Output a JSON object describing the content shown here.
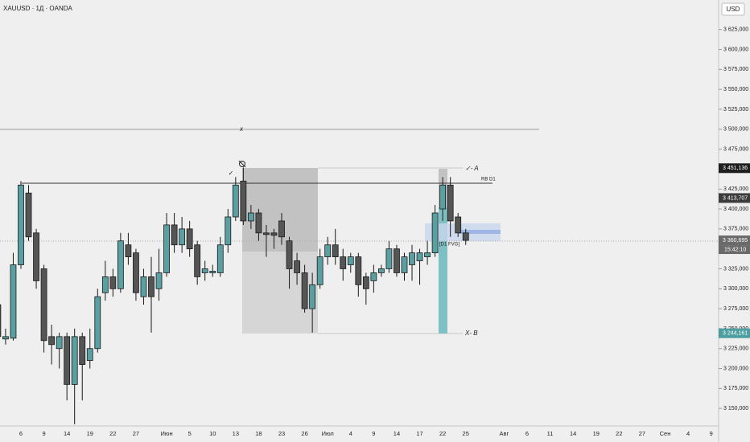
{
  "chart_data": {
    "type": "candlestick",
    "title": "XAUUSD · 1Д · OANDA",
    "currency": "USD",
    "categories": [
      null,
      null,
      null,
      "6",
      null,
      null,
      "9",
      null,
      null,
      "14",
      null,
      null,
      "19",
      null,
      null,
      "22",
      null,
      null,
      "27",
      null,
      null,
      null,
      "Июн",
      null,
      null,
      "5",
      null,
      null,
      "10",
      null,
      null,
      "13",
      null,
      null,
      "18",
      null,
      null,
      "23",
      null,
      null,
      "26",
      null,
      null,
      "Июл",
      null,
      null,
      "4",
      null,
      null,
      "9",
      null,
      null,
      "14",
      null,
      null,
      "17",
      null,
      null,
      "22",
      null,
      null,
      "25",
      null,
      null,
      null,
      null,
      "Авг",
      null,
      null,
      "6",
      null,
      null,
      "11",
      null,
      null,
      "14",
      null,
      null,
      "19",
      null,
      null,
      "22",
      null,
      null,
      "27",
      null,
      null,
      "Сен",
      null,
      null,
      "4",
      null,
      null,
      "9"
    ],
    "open": [
      3280,
      3237,
      3238,
      3330,
      3420,
      3370,
      3325,
      3240,
      3225,
      3240,
      3180,
      3240,
      3210,
      3225,
      3295,
      3315,
      3300,
      3355,
      3345,
      3290,
      3315,
      3300,
      3320,
      3380,
      3355,
      3375,
      3355,
      3320,
      3320,
      3320,
      3355,
      3390,
      3435,
      3385,
      3395,
      3370,
      3370,
      3385,
      3360,
      3335,
      3320,
      3275,
      3305,
      3340,
      3355,
      3340,
      3330,
      3340,
      3315,
      3310,
      3320,
      3325,
      3350,
      3320,
      3330,
      3335,
      3340,
      3345,
      3400,
      3430,
      3390,
      3370,
      null,
      null,
      null,
      null,
      null,
      null,
      null,
      null,
      null,
      null,
      null,
      null,
      null,
      null,
      null,
      null,
      null,
      null,
      null,
      null,
      null,
      null,
      null,
      null,
      null,
      null,
      null,
      null,
      null,
      null,
      null,
      null
    ],
    "high": [
      3300,
      3250,
      3345,
      3435,
      3430,
      3375,
      3330,
      3255,
      3245,
      3245,
      3250,
      3245,
      3250,
      3300,
      3335,
      3325,
      3370,
      3370,
      3350,
      3325,
      3340,
      3350,
      3395,
      3395,
      3390,
      3385,
      3360,
      3335,
      3330,
      3365,
      3400,
      3440,
      3452,
      3405,
      3400,
      3380,
      3375,
      3395,
      3365,
      3345,
      3330,
      3320,
      3350,
      3365,
      3375,
      3350,
      3345,
      3345,
      3320,
      3330,
      3330,
      3360,
      3355,
      3345,
      3355,
      3350,
      3360,
      3405,
      3440,
      3440,
      3395,
      3375,
      null,
      null,
      null,
      null,
      null,
      null,
      null,
      null,
      null,
      null,
      null,
      null,
      null,
      null,
      null,
      null,
      null,
      null,
      null,
      null,
      null,
      null,
      null,
      null,
      null,
      null,
      null,
      null,
      null,
      null,
      null,
      null
    ],
    "low": [
      3235,
      3230,
      3235,
      3325,
      3360,
      3300,
      3220,
      3205,
      3200,
      3160,
      3130,
      3160,
      3200,
      3220,
      3285,
      3290,
      3295,
      3330,
      3285,
      3280,
      3245,
      3285,
      3315,
      3345,
      3345,
      3340,
      3305,
      3310,
      3315,
      3315,
      3345,
      3385,
      3380,
      3375,
      3360,
      3340,
      3350,
      3355,
      3300,
      3305,
      3270,
      3245,
      3300,
      3330,
      3330,
      3310,
      3320,
      3290,
      3280,
      3295,
      3315,
      3320,
      3315,
      3310,
      3310,
      3305,
      3330,
      3340,
      3385,
      3365,
      3365,
      3355,
      null,
      null,
      null,
      null,
      null,
      null,
      null,
      null,
      null,
      null,
      null,
      null,
      null,
      null,
      null,
      null,
      null,
      null,
      null,
      null,
      null,
      null,
      null,
      null,
      null,
      null,
      null,
      null,
      null,
      null,
      null,
      null
    ],
    "close": [
      3240,
      3240,
      3330,
      3430,
      3365,
      3310,
      3235,
      3230,
      3240,
      3180,
      3240,
      3205,
      3225,
      3290,
      3315,
      3300,
      3360,
      3340,
      3295,
      3315,
      3290,
      3320,
      3380,
      3355,
      3375,
      3350,
      3315,
      3325,
      3322,
      3355,
      3390,
      3430,
      3385,
      3395,
      3370,
      3368,
      3367,
      3365,
      3325,
      3320,
      3275,
      3305,
      3340,
      3355,
      3340,
      3325,
      3340,
      3305,
      3300,
      3320,
      3325,
      3350,
      3320,
      3340,
      3345,
      3345,
      3345,
      3395,
      3430,
      3385,
      3370,
      3360.695,
      null,
      null,
      null,
      null,
      null,
      null,
      null,
      null,
      null,
      null,
      null,
      null,
      null,
      null,
      null,
      null,
      null,
      null,
      null,
      null,
      null,
      null,
      null,
      null,
      null,
      null,
      null,
      null,
      null,
      null,
      null,
      null
    ],
    "up_color": "#5a9fa1",
    "down_color": "#555555",
    "ylim": [
      3128,
      3662
    ],
    "yticks": [
      {
        "value": 3150,
        "label": "3 150,000"
      },
      {
        "value": 3175,
        "label": "3 175,000"
      },
      {
        "value": 3200,
        "label": "3 200,000"
      },
      {
        "value": 3225,
        "label": "3 225,000"
      },
      {
        "value": 3250,
        "label": "3 250,000"
      },
      {
        "value": 3275,
        "label": "3 275,000"
      },
      {
        "value": 3300,
        "label": "3 300,000"
      },
      {
        "value": 3325,
        "label": "3 325,000"
      },
      {
        "value": 3350,
        "label": "3 350,000"
      },
      {
        "value": 3375,
        "label": "3 375,000"
      },
      {
        "value": 3400,
        "label": "3 400,000"
      },
      {
        "value": 3425,
        "label": "3 425,000"
      },
      {
        "value": 3450,
        "label": "3 450,000"
      },
      {
        "value": 3475,
        "label": "3 475,000"
      },
      {
        "value": 3500,
        "label": "3 500,000"
      },
      {
        "value": 3525,
        "label": "3 525,000"
      },
      {
        "value": 3550,
        "label": "3 550,000"
      },
      {
        "value": 3575,
        "label": "3 575,000"
      },
      {
        "value": 3600,
        "label": "3 600,000"
      },
      {
        "value": 3625,
        "label": "3 625,000"
      }
    ],
    "price_markers": [
      {
        "value": 3451.136,
        "label": "3 451,136",
        "color": "#1e1e1e"
      },
      {
        "value": 3413.707,
        "label": "3 413,707",
        "color": "#3c3c3c"
      },
      {
        "value": 3360.695,
        "label": "3 360,695",
        "color": "#6a6a6a"
      },
      {
        "value": 3244.161,
        "label": "3 244,161",
        "color": "#4d9ea0"
      }
    ],
    "countdown": "15:42:10",
    "annotations": [
      "x",
      "✓",
      "✓- A",
      "RB D1",
      "[D1 FVG]",
      "X- B"
    ]
  }
}
